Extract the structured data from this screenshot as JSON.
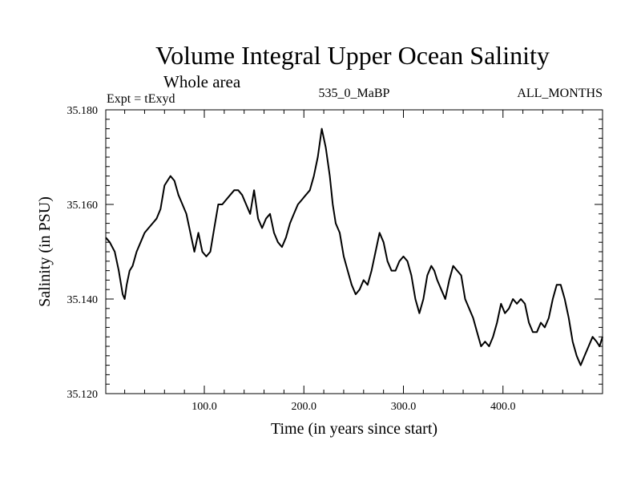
{
  "chart_data": {
    "type": "line",
    "title": "Volume Integral Upper Ocean Salinity",
    "subtitle": "Whole area",
    "annotation_left": "Expt = tExyd",
    "annotation_center": "535_0_MaBP",
    "annotation_right": "ALL_MONTHS",
    "xlabel": "Time (in years since start)",
    "ylabel": "Salinity (in PSU)",
    "xlim": [
      1,
      500
    ],
    "ylim": [
      35.12,
      35.18
    ],
    "x_ticks": [
      100,
      200,
      300,
      400
    ],
    "x_tick_labels": [
      "100.0",
      "200.0",
      "300.0",
      "400.0"
    ],
    "y_ticks": [
      35.12,
      35.14,
      35.16,
      35.18
    ],
    "y_tick_labels": [
      "35.120",
      "35.140",
      "35.160",
      "35.180"
    ],
    "grid": false,
    "series": [
      {
        "color": "#000000",
        "x": [
          1,
          5,
          10,
          14,
          18,
          20,
          22,
          25,
          28,
          32,
          36,
          40,
          44,
          48,
          52,
          56,
          60,
          63,
          66,
          70,
          74,
          78,
          82,
          86,
          90,
          94,
          98,
          102,
          106,
          110,
          114,
          118,
          122,
          126,
          130,
          134,
          138,
          142,
          146,
          150,
          154,
          158,
          162,
          166,
          170,
          174,
          178,
          182,
          186,
          190,
          194,
          198,
          202,
          206,
          210,
          214,
          218,
          222,
          226,
          229,
          232,
          236,
          240,
          244,
          248,
          252,
          256,
          260,
          264,
          268,
          272,
          276,
          280,
          284,
          288,
          292,
          296,
          300,
          304,
          308,
          312,
          316,
          320,
          324,
          328,
          331,
          334,
          338,
          342,
          346,
          350,
          354,
          358,
          362,
          366,
          370,
          374,
          378,
          382,
          386,
          390,
          394,
          398,
          402,
          406,
          410,
          414,
          418,
          422,
          426,
          430,
          434,
          438,
          442,
          446,
          450,
          454,
          458,
          462,
          466,
          470,
          474,
          478,
          482,
          486,
          490,
          494,
          497,
          500
        ],
        "values": [
          35.153,
          35.152,
          35.15,
          35.146,
          35.141,
          35.14,
          35.143,
          35.146,
          35.147,
          35.15,
          35.152,
          35.154,
          35.155,
          35.156,
          35.157,
          35.159,
          35.164,
          35.165,
          35.166,
          35.165,
          35.162,
          35.16,
          35.158,
          35.154,
          35.15,
          35.154,
          35.15,
          35.149,
          35.15,
          35.155,
          35.16,
          35.16,
          35.161,
          35.162,
          35.163,
          35.163,
          35.162,
          35.16,
          35.158,
          35.163,
          35.157,
          35.155,
          35.157,
          35.158,
          35.154,
          35.152,
          35.151,
          35.153,
          35.156,
          35.158,
          35.16,
          35.161,
          35.162,
          35.163,
          35.166,
          35.17,
          35.176,
          35.172,
          35.166,
          35.16,
          35.156,
          35.154,
          35.149,
          35.146,
          35.143,
          35.141,
          35.142,
          35.144,
          35.143,
          35.146,
          35.15,
          35.154,
          35.152,
          35.148,
          35.146,
          35.146,
          35.148,
          35.149,
          35.148,
          35.145,
          35.14,
          35.137,
          35.14,
          35.145,
          35.147,
          35.146,
          35.144,
          35.142,
          35.14,
          35.144,
          35.147,
          35.146,
          35.145,
          35.14,
          35.138,
          35.136,
          35.133,
          35.13,
          35.131,
          35.13,
          35.132,
          35.135,
          35.139,
          35.137,
          35.138,
          35.14,
          35.139,
          35.14,
          35.139,
          35.135,
          35.133,
          35.133,
          35.135,
          35.134,
          35.136,
          35.14,
          35.143,
          35.143,
          35.14,
          35.136,
          35.131,
          35.128,
          35.126,
          35.128,
          35.13,
          35.132,
          35.131,
          35.13,
          35.132
        ]
      }
    ]
  }
}
